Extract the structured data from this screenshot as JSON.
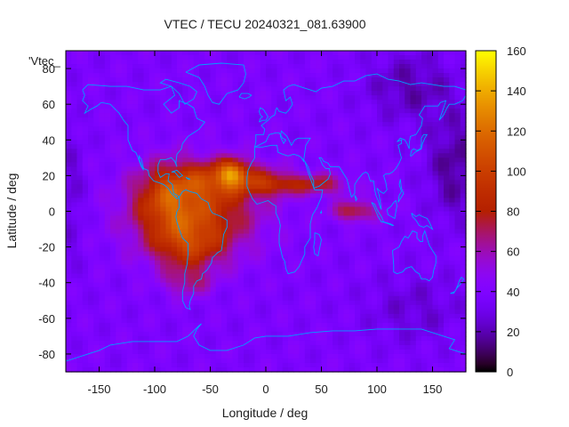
{
  "chart_data": {
    "type": "heatmap",
    "title": "VTEC / TECU 20240321_081.63900",
    "xlabel": "Longitude / deg",
    "ylabel": "Latitude / deg",
    "key_label": "'Vtec_",
    "xlim": [
      -180,
      180
    ],
    "ylim": [
      -90,
      90
    ],
    "xticks": [
      -150,
      -100,
      -50,
      0,
      50,
      100,
      150
    ],
    "yticks": [
      -80,
      -60,
      -40,
      -20,
      0,
      20,
      40,
      60,
      80
    ],
    "colorbar": {
      "min": 0,
      "max": 160,
      "ticks": [
        0,
        20,
        40,
        60,
        80,
        100,
        120,
        140,
        160
      ],
      "palette": "gnuplot-pm3d"
    },
    "grid_resolution": {
      "dlon": 5,
      "dlat": 2.5
    },
    "features": {
      "background_vtec": 38,
      "night_minimum_vtec": 15,
      "equatorial_anomaly_peak_vtec": 150,
      "anomaly_peak_location": {
        "lon": -30,
        "lat": 22
      },
      "secondary_enhancement_location": {
        "lon": 80,
        "lat": 0
      }
    },
    "map_overlay": "coastlines",
    "overlay_color": "#00a0ff"
  }
}
